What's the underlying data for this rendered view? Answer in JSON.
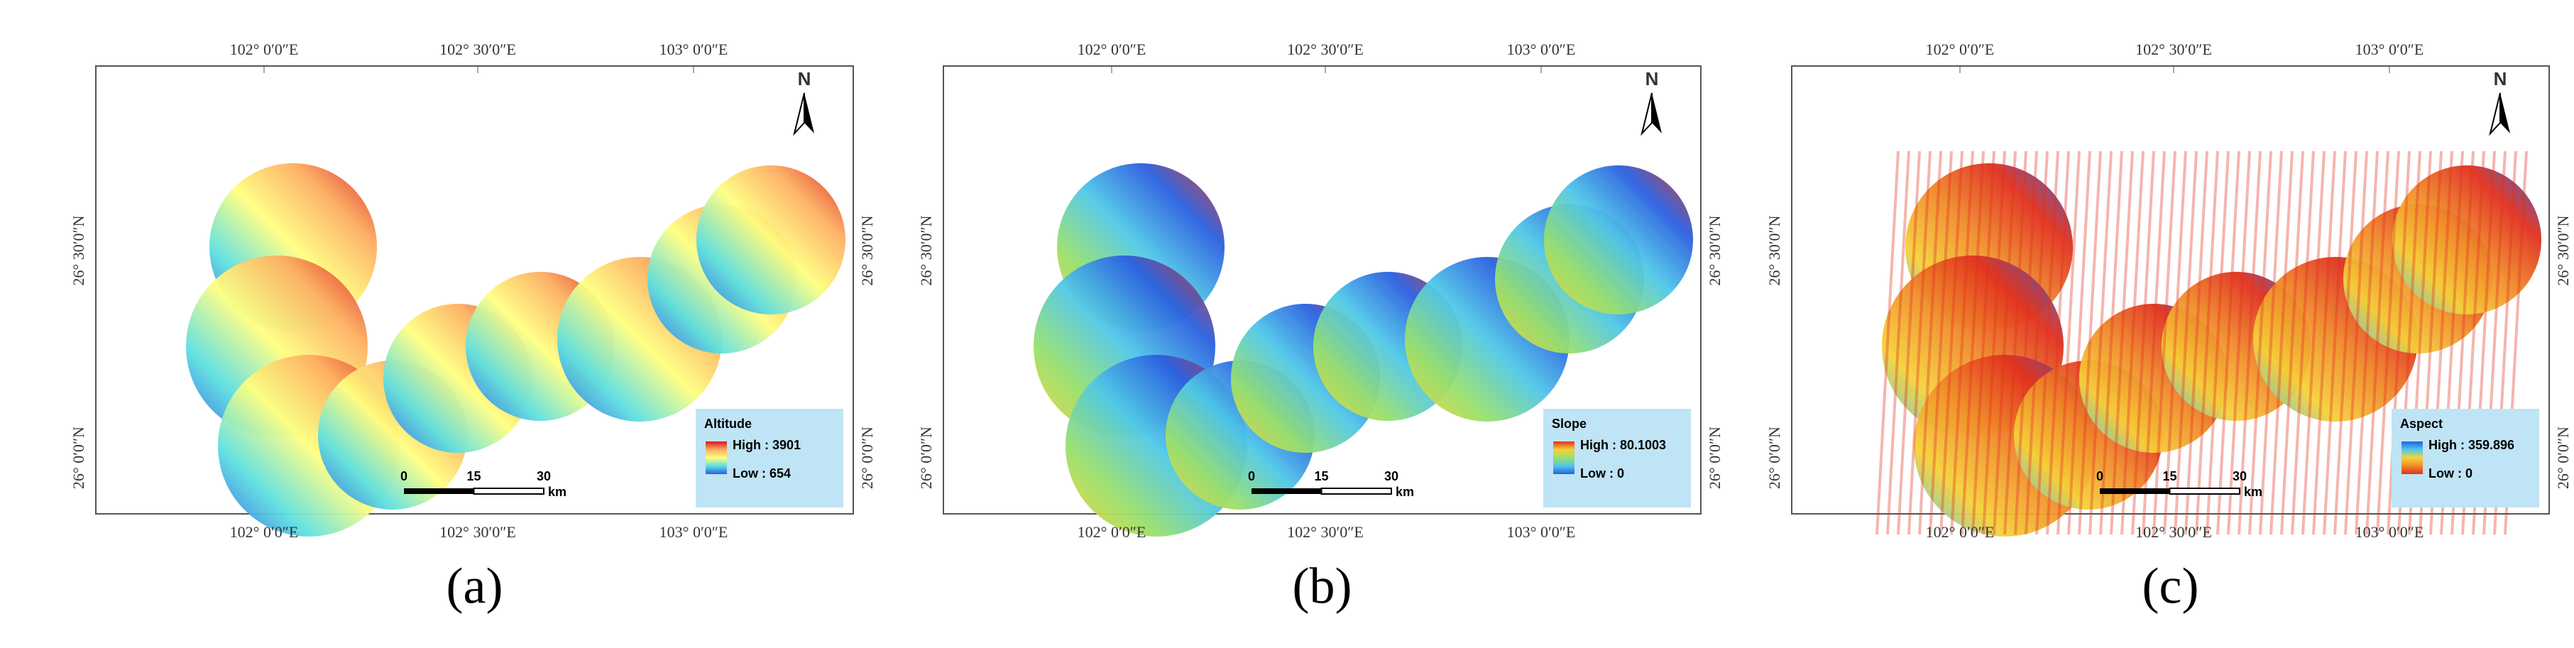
{
  "panels": [
    {
      "label": "(a)",
      "legend": {
        "title": "Altitude",
        "high": "High : 3901",
        "low": "Low : 654"
      },
      "ramp": [
        "#d7191c",
        "#fdae61",
        "#ffff80",
        "#5ee0e0",
        "#2b5ce6"
      ]
    },
    {
      "label": "(b)",
      "legend": {
        "title": "Slope",
        "high": "High : 80.1003",
        "low": "Low : 0"
      },
      "ramp": [
        "#e0301e",
        "#f5d23a",
        "#9ae06a",
        "#4fc8e8",
        "#2a5fe0"
      ]
    },
    {
      "label": "(c)",
      "legend": {
        "title": "Aspect",
        "high": "High : 359.896",
        "low": "Low : 0"
      },
      "ramp": [
        "#2a5fe0",
        "#4fc8e8",
        "#f5d23a",
        "#f08a2a",
        "#e0301e"
      ]
    }
  ],
  "longitudes": [
    "102° 0′0″E",
    "102° 30′0″E",
    "103° 0′0″E"
  ],
  "latitudes": [
    "26° 30′0″N",
    "26° 0′0″N"
  ],
  "north": "N",
  "scale": {
    "ticks": [
      "0",
      "15",
      "30"
    ],
    "unit": "km"
  }
}
